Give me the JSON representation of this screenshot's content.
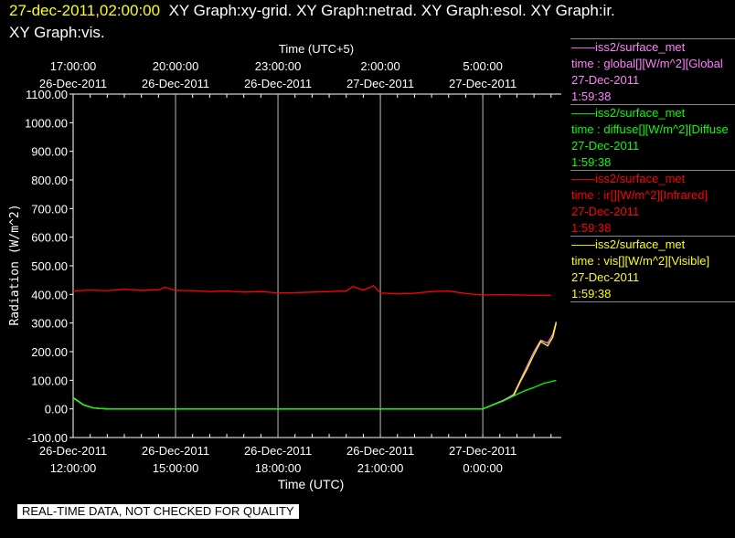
{
  "header": {
    "timestamp": "27-dec-2011,02:00:00",
    "graphs_line1": "XY Graph:xy-grid.  XY Graph:netrad.  XY Graph:esol.  XY Graph:ir.",
    "graphs_line2": "XY Graph:vis."
  },
  "legend": [
    {
      "source": "iss2/surface_met",
      "var": "time : global[][W/m^2][Global",
      "date": "27-Dec-2011",
      "time": "1:59:38",
      "color": "#ff80ff"
    },
    {
      "source": "iss2/surface_met",
      "var": "time : diffuse[][W/m^2][Diffuse",
      "date": "27-Dec-2011",
      "time": "1:59:38",
      "color": "#00ff00"
    },
    {
      "source": "iss2/surface_met",
      "var": "time : ir[][W/m^2][Infrared]",
      "date": "27-Dec-2011",
      "time": "1:59:38",
      "color": "#ff0000"
    },
    {
      "source": "iss2/surface_met",
      "var": "time : vis[][W/m^2][Visible]",
      "date": "27-Dec-2011",
      "time": "1:59:38",
      "color": "#ffff00"
    }
  ],
  "notice": "REAL-TIME DATA, NOT CHECKED FOR QUALITY",
  "chart_data": {
    "type": "line",
    "xlabel": "Time (UTC)",
    "x2label": "Time (UTC+5)",
    "ylabel": "Radiation (W/m^2)",
    "xunit": "hours since 26-Dec-2011 12:00 UTC",
    "xlim": [
      0,
      14.3
    ],
    "ylim": [
      -100,
      1100
    ],
    "yticks": [
      "-100.00",
      "0.00",
      "100.00",
      "200.00",
      "300.00",
      "400.00",
      "500.00",
      "600.00",
      "700.00",
      "800.00",
      "900.00",
      "1000.00",
      "1100.00"
    ],
    "xticks": [
      {
        "x": 0,
        "l1": "26-Dec-2011",
        "l2": "12:00:00"
      },
      {
        "x": 3,
        "l1": "26-Dec-2011",
        "l2": "15:00:00"
      },
      {
        "x": 6,
        "l1": "26-Dec-2011",
        "l2": "18:00:00"
      },
      {
        "x": 9,
        "l1": "26-Dec-2011",
        "l2": "21:00:00"
      },
      {
        "x": 12,
        "l1": "27-Dec-2011",
        "l2": "0:00:00"
      }
    ],
    "x2ticks": [
      {
        "x": 0,
        "l1": "17:00:00",
        "l2": "26-Dec-2011"
      },
      {
        "x": 3,
        "l1": "20:00:00",
        "l2": "26-Dec-2011"
      },
      {
        "x": 6,
        "l1": "23:00:00",
        "l2": "26-Dec-2011"
      },
      {
        "x": 9,
        "l1": "2:00:00",
        "l2": "27-Dec-2011"
      },
      {
        "x": 12,
        "l1": "5:00:00",
        "l2": "27-Dec-2011"
      }
    ],
    "series": [
      {
        "name": "ir",
        "color": "#ff0000",
        "x": [
          0,
          0.5,
          1,
          1.5,
          2,
          2.5,
          2.7,
          3,
          3.5,
          4,
          4.5,
          5,
          5.5,
          6,
          6.5,
          7,
          7.5,
          8,
          8.2,
          8.5,
          8.8,
          9,
          9.5,
          10,
          10.5,
          11,
          11.5,
          12,
          12.5,
          13,
          13.5,
          14
        ],
        "y": [
          412,
          415,
          413,
          418,
          414,
          416,
          425,
          414,
          413,
          410,
          412,
          408,
          410,
          405,
          406,
          408,
          410,
          412,
          428,
          415,
          430,
          405,
          402,
          404,
          410,
          412,
          403,
          398,
          399,
          398,
          397,
          397
        ]
      },
      {
        "name": "global",
        "color": "#ff80ff",
        "x": [
          0,
          0.3,
          0.6,
          1,
          12,
          12.3,
          12.6,
          12.9,
          13.1,
          13.3,
          13.5,
          13.7,
          13.9,
          14.05,
          14.15
        ],
        "y": [
          40,
          15,
          3,
          0,
          0,
          15,
          30,
          50,
          100,
          150,
          200,
          240,
          230,
          260,
          305
        ]
      },
      {
        "name": "vis",
        "color": "#ffff00",
        "x": [
          0,
          0.3,
          0.6,
          1,
          12,
          12.3,
          12.6,
          12.9,
          13.1,
          13.3,
          13.5,
          13.7,
          13.9,
          14.05,
          14.15
        ],
        "y": [
          38,
          14,
          3,
          0,
          0,
          14,
          28,
          45,
          95,
          140,
          190,
          235,
          220,
          250,
          300
        ]
      },
      {
        "name": "diffuse",
        "color": "#00ff00",
        "x": [
          0,
          0.3,
          0.6,
          1,
          12,
          12.3,
          12.6,
          12.9,
          13.2,
          13.5,
          13.8,
          14.0,
          14.15
        ],
        "y": [
          38,
          14,
          3,
          0,
          0,
          14,
          28,
          45,
          62,
          75,
          90,
          95,
          100
        ]
      }
    ]
  }
}
